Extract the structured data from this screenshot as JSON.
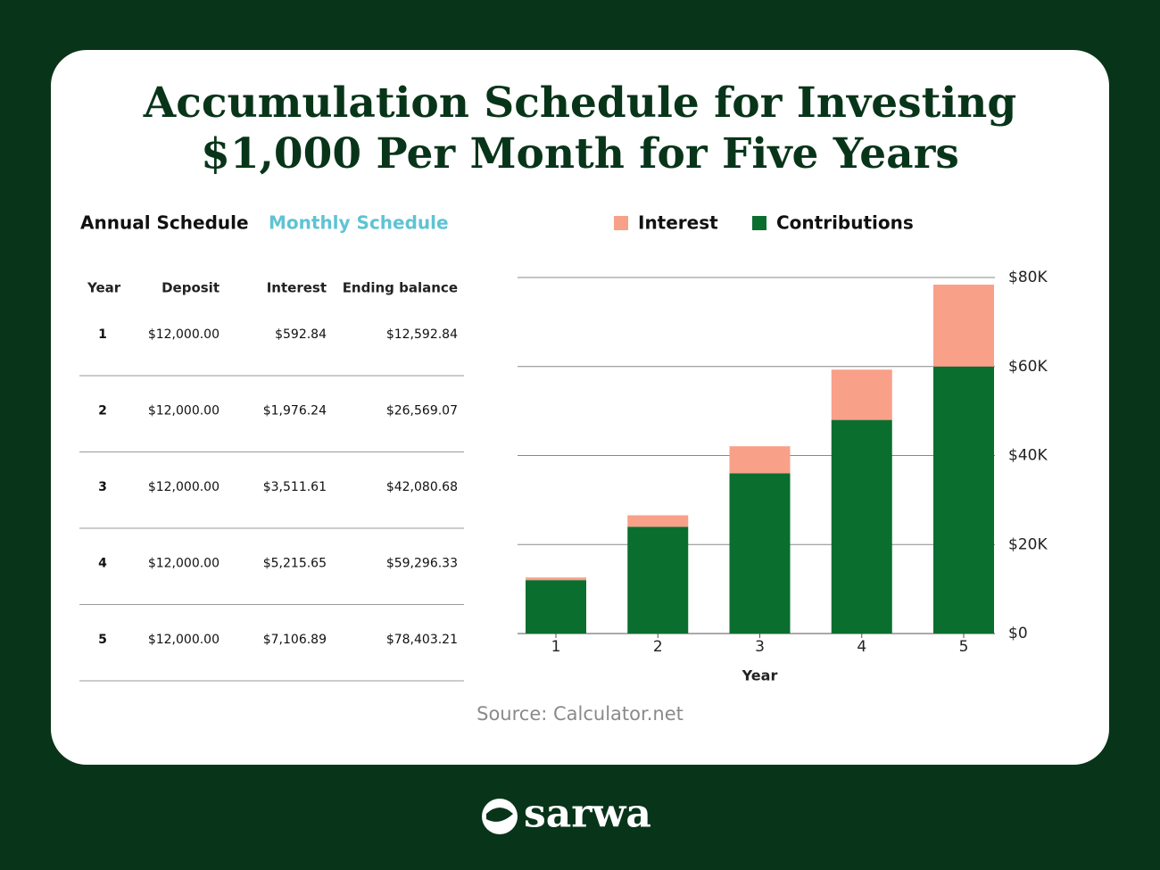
{
  "title_lines": [
    "Accumulation Schedule for Investing",
    "$1,000 Per Month for Five Years"
  ],
  "tabs": [
    "Annual Schedule",
    "Monthly Schedule"
  ],
  "table": {
    "columns": [
      "Year",
      "Deposit",
      "Interest",
      "Ending balance"
    ],
    "rows": [
      [
        "1",
        "$12,000.00",
        "$592.84",
        "$12,592.84"
      ],
      [
        "2",
        "$12,000.00",
        "$1,976.24",
        "$26,569.07"
      ],
      [
        "3",
        "$12,000.00",
        "$3,511.61",
        "$42,080.68"
      ],
      [
        "4",
        "$12,000.00",
        "$5,215.65",
        "$59,296.33"
      ],
      [
        "5",
        "$12,000.00",
        "$7,106.89",
        "$78,403.21"
      ]
    ]
  },
  "chart_data": {
    "type": "stacked_bar",
    "categories": [
      "1",
      "2",
      "3",
      "4",
      "5"
    ],
    "series": [
      {
        "name": "Interest",
        "color": "#f9a089",
        "values": [
          592.84,
          2569.07,
          6080.68,
          11296.33,
          18403.21
        ]
      },
      {
        "name": "Contributions",
        "color": "#0a6e2f",
        "values": [
          12000,
          24000,
          36000,
          48000,
          60000
        ]
      }
    ],
    "ylim": [
      0,
      80000
    ],
    "yticks": [
      {
        "value": 0,
        "label": "$0"
      },
      {
        "value": 20000,
        "label": "$20K"
      },
      {
        "value": 40000,
        "label": "$40K"
      },
      {
        "value": 60000,
        "label": "$60K"
      },
      {
        "value": 80000,
        "label": "$80K"
      }
    ],
    "xlabel": "Year",
    "grid": true,
    "legend": "top"
  },
  "source": "Source: Calculator.net",
  "brand": "sarwa"
}
